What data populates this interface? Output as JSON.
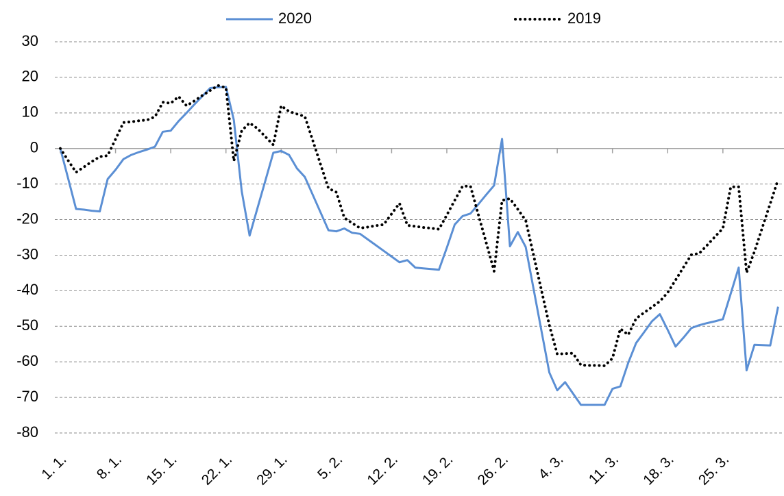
{
  "chart_data": {
    "type": "line",
    "categories": [
      "1. 1.",
      null,
      null,
      null,
      null,
      null,
      null,
      "8. 1.",
      null,
      null,
      null,
      null,
      null,
      null,
      "15. 1.",
      null,
      null,
      null,
      null,
      null,
      null,
      "22. 1.",
      null,
      null,
      null,
      null,
      null,
      null,
      "29. 1.",
      null,
      null,
      null,
      null,
      null,
      null,
      "5. 2.",
      null,
      null,
      null,
      null,
      null,
      null,
      "12. 2.",
      null,
      null,
      null,
      null,
      null,
      null,
      "19. 2.",
      null,
      null,
      null,
      null,
      null,
      null,
      "26. 2.",
      null,
      null,
      null,
      null,
      null,
      null,
      "4. 3.",
      null,
      null,
      null,
      null,
      null,
      null,
      "11. 3.",
      null,
      null,
      null,
      null,
      null,
      null,
      "18. 3.",
      null,
      null,
      null,
      null,
      null,
      null,
      "25. 3.",
      null,
      null,
      null,
      null,
      null,
      null,
      null
    ],
    "series": [
      {
        "name": "2020",
        "color": "#5b8fd4",
        "dash": "solid",
        "values": [
          0,
          -8.5,
          -17,
          -17.2,
          -17.5,
          -17.7,
          -8.6,
          -6,
          -3,
          -1.8,
          -1,
          -0.3,
          0.5,
          4.7,
          5,
          7.7,
          10,
          12.4,
          14.7,
          17,
          17.2,
          17.3,
          8,
          -12,
          -24.5,
          -16.7,
          -9,
          -1.2,
          -0.7,
          -1.8,
          -5.6,
          -8,
          -13,
          -18,
          -23,
          -23.3,
          -22.5,
          -23.7,
          -24,
          -25.6,
          -27.2,
          -28.8,
          -30.4,
          -32,
          -31.4,
          -33.5,
          -33.7,
          -33.9,
          -34.1,
          -27.9,
          -21.4,
          -19,
          -18.3,
          -15.7,
          -13,
          -10.4,
          2.7,
          -27.5,
          -23.5,
          -27.7,
          -39.5,
          -51.3,
          -63,
          -68,
          -65.7,
          -68.9,
          -72.1,
          -72.1,
          -72.1,
          -72.1,
          -67.6,
          -66.9,
          -60.3,
          -54.7,
          -51.7,
          -48.6,
          -46.6,
          -51,
          -55.7,
          -53.2,
          -50.5,
          -49.7,
          -49.1,
          -48.6,
          -48,
          -40.8,
          -33.5,
          -62.4,
          -55.2,
          -55.3,
          -55.4,
          -44.5
        ]
      },
      {
        "name": "2019",
        "color": "#000000",
        "dash": "dotted",
        "values": [
          0,
          -3.4,
          -6.7,
          -5.2,
          -3.7,
          -2.3,
          -2,
          2.6,
          7.3,
          7.5,
          7.8,
          8,
          8.9,
          13,
          12.7,
          14.6,
          12,
          13.4,
          14.9,
          16.3,
          17.7,
          17.1,
          -3.5,
          5,
          7.2,
          5.6,
          3.3,
          1,
          12,
          10.4,
          9.7,
          9,
          2.3,
          -4.5,
          -11.2,
          -12.3,
          -19.5,
          -21,
          -22.4,
          -22.1,
          -21.7,
          -21.4,
          -18.4,
          -15.4,
          -21.6,
          -21.9,
          -22.2,
          -22.4,
          -22.7,
          -18.7,
          -14.6,
          -10.6,
          -10.6,
          -18.6,
          -26.5,
          -34.5,
          -14.6,
          -14.1,
          -17.1,
          -20.2,
          -30,
          -39.9,
          -49.7,
          -57.8,
          -57.7,
          -57.6,
          -60.9,
          -61,
          -61,
          -61.1,
          -59,
          -50.7,
          -52.4,
          -47.8,
          -46.2,
          -44.6,
          -43,
          -40.5,
          -37,
          -33.4,
          -29.9,
          -29.5,
          -27.2,
          -24.8,
          -22.5,
          -10.8,
          -10.8,
          -34.9,
          -29,
          -22.2,
          -15.5,
          -8.7
        ]
      }
    ],
    "ylim": [
      -80,
      30
    ],
    "yticks": [
      30,
      20,
      10,
      0,
      -10,
      -20,
      -30,
      -40,
      -50,
      -60,
      -70,
      -80
    ],
    "grid": true,
    "legend": "top"
  }
}
